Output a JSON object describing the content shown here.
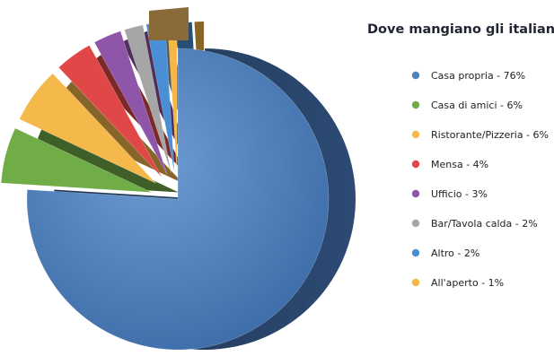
{
  "chart_data": {
    "type": "pie",
    "title": "Dove mangiano gli italiani?",
    "categories": [
      "Casa propria",
      "Casa di amici",
      "Ristorante/Pizzeria",
      "Mensa",
      "Ufficio",
      "Bar/Tavola calda",
      "Altro",
      "All'aperto"
    ],
    "values": [
      76,
      6,
      6,
      4,
      3,
      2,
      2,
      1
    ],
    "legend_labels": [
      "Casa propria - 76%",
      "Casa di amici - 6%",
      "Ristorante/Pizzeria - 6%",
      "Mensa - 4%",
      "Ufficio - 3%",
      "Bar/Tavola calda - 2%",
      "Altro - 2%",
      "All'aperto - 1%"
    ],
    "colors": [
      "#4f81bd",
      "#70ad47",
      "#f5b84b",
      "#e04848",
      "#8e55a8",
      "#a6a6a6",
      "#4a8fd6",
      "#f6b845"
    ],
    "legend_position": "right",
    "style": "3d-exploded"
  }
}
